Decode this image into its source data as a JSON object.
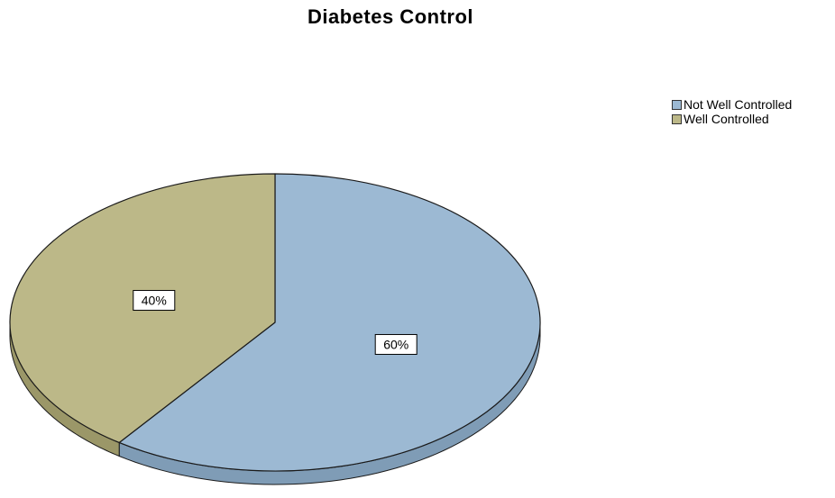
{
  "chart_data": {
    "type": "pie",
    "title": "Diabetes Control",
    "slices": [
      {
        "label": "Not Well Controlled",
        "value": 60,
        "data_label": "60%",
        "color": "#9cb9d3",
        "side_color": "#7f9cb6"
      },
      {
        "label": "Well Controlled",
        "value": 40,
        "data_label": "40%",
        "color": "#bcb888",
        "side_color": "#9b9768"
      }
    ],
    "legend_position": "top-right",
    "start_angle": "12 o'clock",
    "direction": "clockwise",
    "style": "3d"
  }
}
